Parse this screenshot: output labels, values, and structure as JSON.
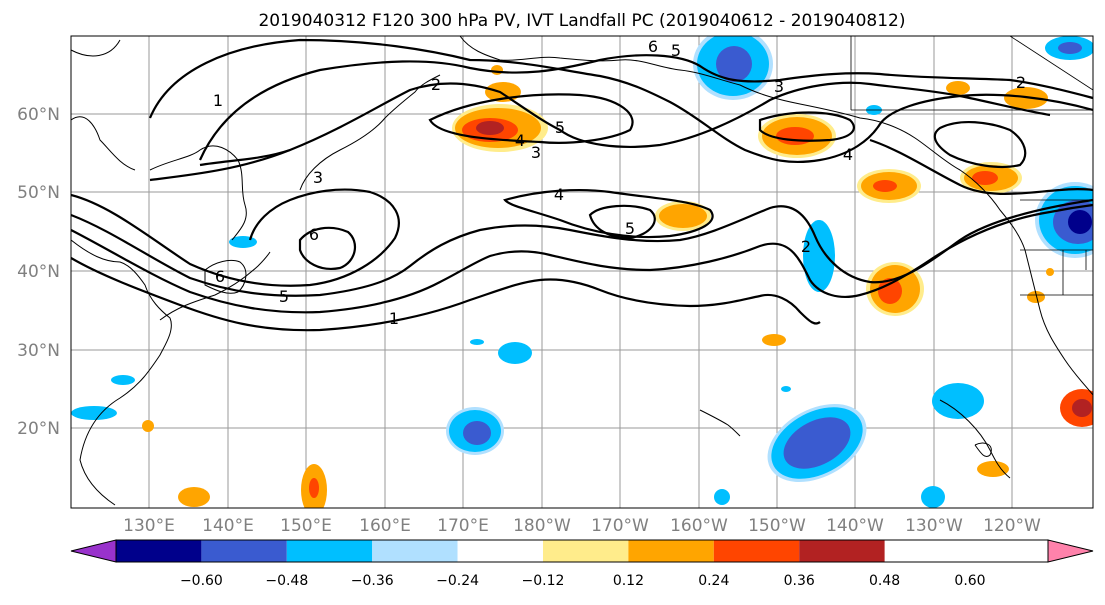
{
  "title": "2019040312 F120 300 hPa PV, IVT Landfall PC (2019040612 - 2019040812)",
  "lat_labels": [
    "60°N",
    "50°N",
    "40°N",
    "30°N",
    "20°N"
  ],
  "lon_labels": [
    "130°E",
    "140°E",
    "150°E",
    "160°E",
    "170°E",
    "180°W",
    "170°W",
    "160°W",
    "150°W",
    "140°W",
    "130°W",
    "120°W"
  ],
  "colorbar": {
    "colors": [
      "#9932cc",
      "#00008b",
      "#3a5bd0",
      "#00bfff",
      "#b0e0ff",
      "#ffffff",
      "#ffec8b",
      "#ffa500",
      "#ff4500",
      "#b22222",
      "#ff82ab"
    ],
    "tick_labels": [
      "−0.60",
      "−0.48",
      "−0.36",
      "−0.24",
      "−0.12",
      "0.12",
      "0.24",
      "0.36",
      "0.48",
      "0.60"
    ]
  },
  "contour_labels": [
    "1",
    "2",
    "3",
    "4",
    "5",
    "6",
    "1",
    "2",
    "3",
    "4",
    "5",
    "6",
    "2",
    "3",
    "4",
    "5",
    "5",
    "6"
  ]
}
